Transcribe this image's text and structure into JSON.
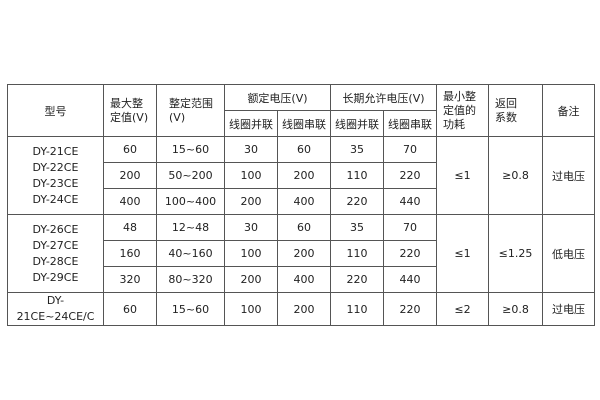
{
  "headers": {
    "model": "型号",
    "max_setting": [
      "最大整",
      "定值(V)"
    ],
    "setting_range": [
      "整定范围",
      "(V)"
    ],
    "rated_voltage": "额定电压(V)",
    "long_term_voltage": "长期允许电压(V)",
    "coil_parallel": "线圈并联",
    "coil_series": "线圈串联",
    "min_power": [
      "最小整",
      "定值的",
      "功耗"
    ],
    "return_coef": [
      "返回",
      "系数"
    ],
    "remark": "备注"
  },
  "groups": [
    {
      "models": [
        "DY-21CE",
        "DY-22CE",
        "DY-23CE",
        "DY-24CE"
      ],
      "power": "≤1",
      "return": "≥0.8",
      "remark": "过电压",
      "rows": [
        [
          "60",
          "15~60",
          "30",
          "60",
          "35",
          "70"
        ],
        [
          "200",
          "50~200",
          "100",
          "200",
          "110",
          "220"
        ],
        [
          "400",
          "100~400",
          "200",
          "400",
          "220",
          "440"
        ]
      ]
    },
    {
      "models": [
        "DY-26CE",
        "DY-27CE",
        "DY-28CE",
        "DY-29CE"
      ],
      "power": "≤1",
      "return": "≤1.25",
      "remark": "低电压",
      "rows": [
        [
          "48",
          "12~48",
          "30",
          "60",
          "35",
          "70"
        ],
        [
          "160",
          "40~160",
          "100",
          "200",
          "110",
          "220"
        ],
        [
          "320",
          "80~320",
          "200",
          "400",
          "220",
          "440"
        ]
      ]
    },
    {
      "models": [
        "DY-21CE~24CE/C"
      ],
      "power": "≤2",
      "return": "≥0.8",
      "remark": "过电压",
      "rows": [
        [
          "60",
          "15~60",
          "100",
          "200",
          "110",
          "220"
        ]
      ]
    }
  ]
}
